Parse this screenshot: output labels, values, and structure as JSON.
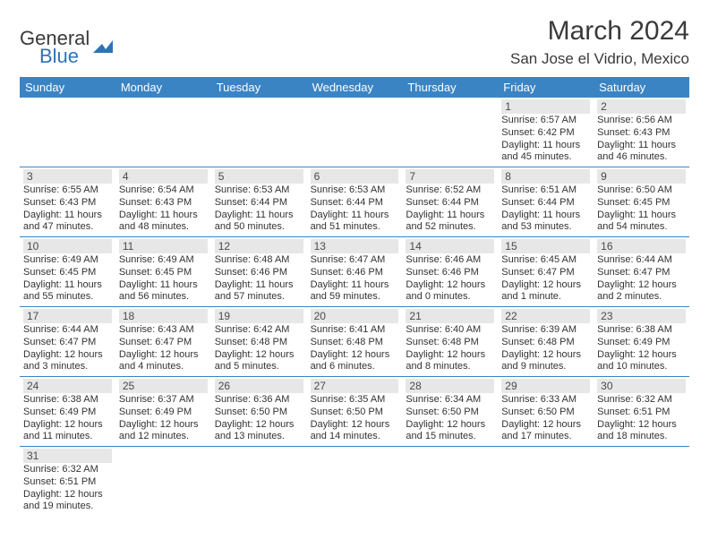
{
  "brand": {
    "word1": "General",
    "word2": "Blue",
    "mark_color": "#2f72b8"
  },
  "title": "March 2024",
  "location": "San Jose el Vidrio, Mexico",
  "colors": {
    "header_bg": "#3b84c4",
    "header_text": "#ffffff",
    "daynum_bg": "#e7e7e7",
    "rule": "#3b84c4",
    "text": "#333333"
  },
  "dow": [
    "Sunday",
    "Monday",
    "Tuesday",
    "Wednesday",
    "Thursday",
    "Friday",
    "Saturday"
  ],
  "weeks": [
    [
      null,
      null,
      null,
      null,
      null,
      {
        "n": "1",
        "sunrise": "6:57 AM",
        "sunset": "6:42 PM",
        "dl_h": "11",
        "dl_m": "45"
      },
      {
        "n": "2",
        "sunrise": "6:56 AM",
        "sunset": "6:43 PM",
        "dl_h": "11",
        "dl_m": "46"
      }
    ],
    [
      {
        "n": "3",
        "sunrise": "6:55 AM",
        "sunset": "6:43 PM",
        "dl_h": "11",
        "dl_m": "47"
      },
      {
        "n": "4",
        "sunrise": "6:54 AM",
        "sunset": "6:43 PM",
        "dl_h": "11",
        "dl_m": "48"
      },
      {
        "n": "5",
        "sunrise": "6:53 AM",
        "sunset": "6:44 PM",
        "dl_h": "11",
        "dl_m": "50"
      },
      {
        "n": "6",
        "sunrise": "6:53 AM",
        "sunset": "6:44 PM",
        "dl_h": "11",
        "dl_m": "51"
      },
      {
        "n": "7",
        "sunrise": "6:52 AM",
        "sunset": "6:44 PM",
        "dl_h": "11",
        "dl_m": "52"
      },
      {
        "n": "8",
        "sunrise": "6:51 AM",
        "sunset": "6:44 PM",
        "dl_h": "11",
        "dl_m": "53"
      },
      {
        "n": "9",
        "sunrise": "6:50 AM",
        "sunset": "6:45 PM",
        "dl_h": "11",
        "dl_m": "54"
      }
    ],
    [
      {
        "n": "10",
        "sunrise": "6:49 AM",
        "sunset": "6:45 PM",
        "dl_h": "11",
        "dl_m": "55"
      },
      {
        "n": "11",
        "sunrise": "6:49 AM",
        "sunset": "6:45 PM",
        "dl_h": "11",
        "dl_m": "56"
      },
      {
        "n": "12",
        "sunrise": "6:48 AM",
        "sunset": "6:46 PM",
        "dl_h": "11",
        "dl_m": "57"
      },
      {
        "n": "13",
        "sunrise": "6:47 AM",
        "sunset": "6:46 PM",
        "dl_h": "11",
        "dl_m": "59"
      },
      {
        "n": "14",
        "sunrise": "6:46 AM",
        "sunset": "6:46 PM",
        "dl_h": "12",
        "dl_m": "0"
      },
      {
        "n": "15",
        "sunrise": "6:45 AM",
        "sunset": "6:47 PM",
        "dl_h": "12",
        "dl_m": "1"
      },
      {
        "n": "16",
        "sunrise": "6:44 AM",
        "sunset": "6:47 PM",
        "dl_h": "12",
        "dl_m": "2"
      }
    ],
    [
      {
        "n": "17",
        "sunrise": "6:44 AM",
        "sunset": "6:47 PM",
        "dl_h": "12",
        "dl_m": "3"
      },
      {
        "n": "18",
        "sunrise": "6:43 AM",
        "sunset": "6:47 PM",
        "dl_h": "12",
        "dl_m": "4"
      },
      {
        "n": "19",
        "sunrise": "6:42 AM",
        "sunset": "6:48 PM",
        "dl_h": "12",
        "dl_m": "5"
      },
      {
        "n": "20",
        "sunrise": "6:41 AM",
        "sunset": "6:48 PM",
        "dl_h": "12",
        "dl_m": "6"
      },
      {
        "n": "21",
        "sunrise": "6:40 AM",
        "sunset": "6:48 PM",
        "dl_h": "12",
        "dl_m": "8"
      },
      {
        "n": "22",
        "sunrise": "6:39 AM",
        "sunset": "6:48 PM",
        "dl_h": "12",
        "dl_m": "9"
      },
      {
        "n": "23",
        "sunrise": "6:38 AM",
        "sunset": "6:49 PM",
        "dl_h": "12",
        "dl_m": "10"
      }
    ],
    [
      {
        "n": "24",
        "sunrise": "6:38 AM",
        "sunset": "6:49 PM",
        "dl_h": "12",
        "dl_m": "11"
      },
      {
        "n": "25",
        "sunrise": "6:37 AM",
        "sunset": "6:49 PM",
        "dl_h": "12",
        "dl_m": "12"
      },
      {
        "n": "26",
        "sunrise": "6:36 AM",
        "sunset": "6:50 PM",
        "dl_h": "12",
        "dl_m": "13"
      },
      {
        "n": "27",
        "sunrise": "6:35 AM",
        "sunset": "6:50 PM",
        "dl_h": "12",
        "dl_m": "14"
      },
      {
        "n": "28",
        "sunrise": "6:34 AM",
        "sunset": "6:50 PM",
        "dl_h": "12",
        "dl_m": "15"
      },
      {
        "n": "29",
        "sunrise": "6:33 AM",
        "sunset": "6:50 PM",
        "dl_h": "12",
        "dl_m": "17"
      },
      {
        "n": "30",
        "sunrise": "6:32 AM",
        "sunset": "6:51 PM",
        "dl_h": "12",
        "dl_m": "18"
      }
    ],
    [
      {
        "n": "31",
        "sunrise": "6:32 AM",
        "sunset": "6:51 PM",
        "dl_h": "12",
        "dl_m": "19"
      },
      null,
      null,
      null,
      null,
      null,
      null
    ]
  ],
  "labels": {
    "sunrise_prefix": "Sunrise: ",
    "sunset_prefix": "Sunset: ",
    "daylight_prefix": "Daylight: ",
    "hours_word": " hours",
    "and_word": "and ",
    "minutes_suffix": " minutes.",
    "minute_suffix": " minute."
  }
}
